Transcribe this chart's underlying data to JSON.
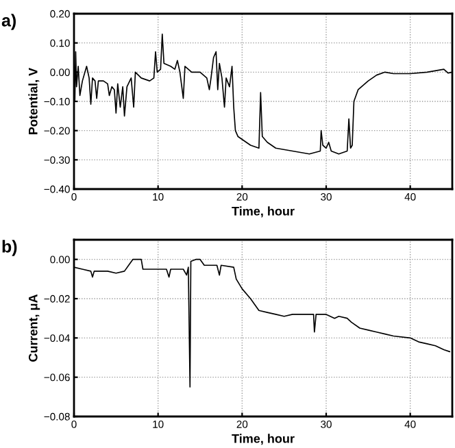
{
  "chart_data": [
    {
      "type": "line",
      "xlabel": "Time, hour",
      "ylabel": "Potential, V",
      "annotations": [
        "a)"
      ],
      "grid": true,
      "line_style": "solid",
      "marker": "none",
      "xlim": [
        0,
        45
      ],
      "xticks": [
        0,
        10,
        20,
        30,
        40
      ],
      "ylim": [
        -0.4,
        0.2
      ],
      "yticks": [
        {
          "value": -0.4,
          "label": "−0.40"
        },
        {
          "value": -0.3,
          "label": "−0.30"
        },
        {
          "value": -0.2,
          "label": "−0.20"
        },
        {
          "value": -0.1,
          "label": "−0.10"
        },
        {
          "value": 0,
          "label": "0.00"
        },
        {
          "value": 0.1,
          "label": "0.10"
        },
        {
          "value": 0.2,
          "label": "0.20"
        }
      ],
      "series": [
        {
          "color": "#000000",
          "x": [
            0,
            0.1,
            0.2,
            0.3,
            0.5,
            0.7,
            1,
            1.5,
            1.8,
            2,
            2.2,
            2.5,
            2.7,
            2.9,
            3.5,
            4,
            4.2,
            4.5,
            4.8,
            5,
            5.2,
            5.5,
            5.8,
            6,
            6.3,
            6.8,
            7.1,
            7.3,
            8,
            9,
            9.5,
            9.7,
            9.9,
            10.3,
            10.5,
            10.7,
            11.5,
            12,
            12.3,
            12.6,
            13,
            13.2,
            14,
            15,
            15.8,
            16.1,
            16.3,
            16.6,
            16.9,
            17.1,
            17.3,
            17.6,
            17.9,
            18.1,
            18.5,
            18.8,
            19,
            19.2,
            19.5,
            20,
            21,
            22,
            22.2,
            22.4,
            23,
            24,
            26,
            28,
            29.3,
            29.4,
            29.6,
            30,
            30.3,
            30.6,
            31.5,
            32.5,
            32.7,
            32.9,
            33.1,
            33.3,
            33.8,
            35,
            36,
            37,
            38,
            40,
            42,
            44,
            44.5,
            45
          ],
          "values": [
            0.05,
            -0.1,
            0.07,
            -0.05,
            0.02,
            -0.08,
            -0.03,
            0.02,
            -0.02,
            -0.11,
            -0.02,
            -0.03,
            -0.09,
            -0.03,
            -0.03,
            -0.04,
            -0.08,
            -0.05,
            -0.06,
            -0.14,
            -0.04,
            -0.12,
            -0.05,
            -0.15,
            -0.05,
            -0.02,
            -0.12,
            0.0,
            -0.02,
            -0.03,
            -0.02,
            0.07,
            0.0,
            0.01,
            0.13,
            0.03,
            0.02,
            0.01,
            0.04,
            0.0,
            -0.09,
            0.02,
            0.0,
            0.0,
            -0.02,
            -0.06,
            -0.02,
            0.05,
            0.07,
            -0.06,
            0.03,
            -0.02,
            -0.12,
            -0.02,
            -0.05,
            0.02,
            -0.12,
            -0.2,
            -0.22,
            -0.23,
            -0.25,
            -0.26,
            -0.07,
            -0.22,
            -0.24,
            -0.26,
            -0.27,
            -0.28,
            -0.27,
            -0.2,
            -0.25,
            -0.26,
            -0.24,
            -0.27,
            -0.28,
            -0.27,
            -0.16,
            -0.26,
            -0.25,
            -0.1,
            -0.06,
            -0.03,
            -0.01,
            0.0,
            -0.005,
            -0.005,
            0.0,
            0.01,
            -0.003,
            0.0
          ]
        }
      ]
    },
    {
      "type": "line",
      "xlabel": "Time, hour",
      "ylabel": "Current, μA",
      "annotations": [
        "b)"
      ],
      "grid": true,
      "line_style": "solid",
      "marker": "none",
      "xlim": [
        0,
        45
      ],
      "xticks": [
        0,
        10,
        20,
        30,
        40
      ],
      "ylim": [
        -0.08,
        0.01
      ],
      "yticks": [
        {
          "value": -0.08,
          "label": "−0.08"
        },
        {
          "value": -0.06,
          "label": "−0.06"
        },
        {
          "value": -0.04,
          "label": "−0.04"
        },
        {
          "value": -0.02,
          "label": "−0.02"
        },
        {
          "value": 0,
          "label": "0.00"
        }
      ],
      "series": [
        {
          "color": "#000000",
          "x": [
            0,
            1,
            2,
            2.2,
            2.4,
            4,
            5,
            6,
            6.5,
            7,
            8,
            8.2,
            10,
            11,
            11.3,
            11.5,
            13,
            13.4,
            13.6,
            13.8,
            13.9,
            14.5,
            15,
            15.5,
            17,
            17.3,
            17.5,
            19,
            19.3,
            20,
            21,
            22,
            23,
            24,
            25,
            26,
            27,
            28.5,
            28.6,
            28.8,
            30,
            31,
            31.5,
            32.5,
            33,
            34,
            35,
            36,
            37,
            38,
            40,
            41,
            42,
            43,
            44,
            44.7
          ],
          "values": [
            -0.004,
            -0.005,
            -0.006,
            -0.009,
            -0.006,
            -0.006,
            -0.007,
            -0.006,
            -0.003,
            0.0,
            0.0,
            -0.005,
            -0.005,
            -0.005,
            -0.009,
            -0.005,
            -0.005,
            -0.008,
            -0.004,
            -0.065,
            -0.001,
            0.0,
            0.0,
            -0.003,
            -0.003,
            -0.008,
            -0.003,
            -0.004,
            -0.01,
            -0.015,
            -0.02,
            -0.026,
            -0.027,
            -0.028,
            -0.029,
            -0.028,
            -0.028,
            -0.028,
            -0.037,
            -0.028,
            -0.028,
            -0.03,
            -0.029,
            -0.03,
            -0.032,
            -0.035,
            -0.036,
            -0.037,
            -0.038,
            -0.039,
            -0.04,
            -0.042,
            -0.043,
            -0.044,
            -0.046,
            -0.047
          ]
        }
      ]
    }
  ]
}
